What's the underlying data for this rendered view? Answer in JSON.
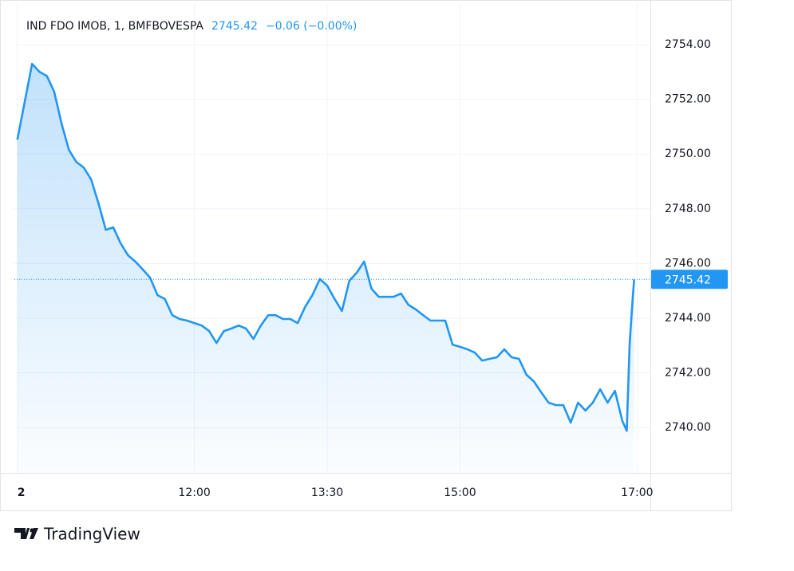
{
  "chart_data": {
    "type": "line",
    "title": "IND FDO IMOB, 1, BMFBOVESPA",
    "last_price": "2745.42",
    "change": "−0.06 (−0.00%)",
    "brand": "TradingView",
    "x": [
      "10:00",
      "10:05",
      "10:10",
      "10:15",
      "10:20",
      "10:25",
      "10:30",
      "10:35",
      "10:40",
      "10:45",
      "10:50",
      "10:55",
      "11:00",
      "11:05",
      "11:10",
      "11:15",
      "11:20",
      "11:25",
      "11:30",
      "11:35",
      "11:40",
      "11:45",
      "11:50",
      "11:55",
      "12:00",
      "12:05",
      "12:10",
      "12:15",
      "12:20",
      "12:25",
      "12:30",
      "12:35",
      "12:40",
      "12:45",
      "12:50",
      "12:55",
      "13:00",
      "13:05",
      "13:10",
      "13:15",
      "13:20",
      "13:25",
      "13:30",
      "13:35",
      "13:40",
      "13:45",
      "13:50",
      "13:55",
      "14:00",
      "14:05",
      "14:10",
      "14:15",
      "14:20",
      "14:25",
      "14:30",
      "14:35",
      "14:40",
      "14:45",
      "14:50",
      "14:55",
      "15:00",
      "15:05",
      "15:10",
      "15:15",
      "15:20",
      "15:25",
      "15:30",
      "15:35",
      "15:40",
      "15:45",
      "15:50",
      "15:55",
      "16:00",
      "16:05",
      "16:10",
      "16:15",
      "16:20",
      "16:25",
      "16:30",
      "16:35",
      "16:40",
      "16:45",
      "16:50",
      "16:53",
      "16:55",
      "16:57",
      "16:58"
    ],
    "series": [
      {
        "name": "IND FDO IMOB",
        "color": "#2196f3",
        "values": [
          2750.53,
          2751.9,
          2753.3,
          2753.01,
          2752.86,
          2752.28,
          2751.11,
          2750.15,
          2749.71,
          2749.51,
          2749.07,
          2748.2,
          2747.23,
          2747.32,
          2746.74,
          2746.3,
          2746.07,
          2745.78,
          2745.48,
          2744.84,
          2744.7,
          2744.11,
          2743.97,
          2743.91,
          2743.82,
          2743.73,
          2743.53,
          2743.09,
          2743.53,
          2743.62,
          2743.73,
          2743.62,
          2743.24,
          2743.73,
          2744.11,
          2744.11,
          2743.97,
          2743.97,
          2743.82,
          2744.41,
          2744.84,
          2745.43,
          2745.19,
          2744.7,
          2744.26,
          2745.37,
          2745.66,
          2746.07,
          2745.08,
          2744.78,
          2744.78,
          2744.78,
          2744.9,
          2744.49,
          2744.32,
          2744.11,
          2743.91,
          2743.91,
          2743.91,
          2743.03,
          2742.95,
          2742.86,
          2742.74,
          2742.45,
          2742.51,
          2742.57,
          2742.86,
          2742.57,
          2742.51,
          2741.93,
          2741.69,
          2741.29,
          2740.91,
          2740.82,
          2740.82,
          2740.18,
          2740.91,
          2740.62,
          2740.91,
          2741.4,
          2740.91,
          2741.34,
          2740.24,
          2739.88,
          2743.09,
          2744.7,
          2745.42
        ]
      }
    ],
    "xlim": [
      "09:58",
      "17:09"
    ],
    "xticks": [
      {
        "value": "10:00",
        "label": "2"
      },
      "12:00",
      "13:30",
      "15:00",
      "17:00"
    ],
    "ylim": [
      2738.34,
      2755.49
    ],
    "yticks": [
      {
        "value": 2740,
        "label": "2740.00"
      },
      {
        "value": 2742,
        "label": "2742.00"
      },
      {
        "value": 2744,
        "label": "2744.00"
      },
      {
        "value": 2746,
        "label": "2746.00"
      },
      {
        "value": 2748,
        "label": "2748.00"
      },
      {
        "value": 2750,
        "label": "2750.00"
      },
      {
        "value": 2752,
        "label": "2752.00"
      },
      {
        "value": 2754,
        "label": "2754.00"
      }
    ],
    "grid": true
  }
}
